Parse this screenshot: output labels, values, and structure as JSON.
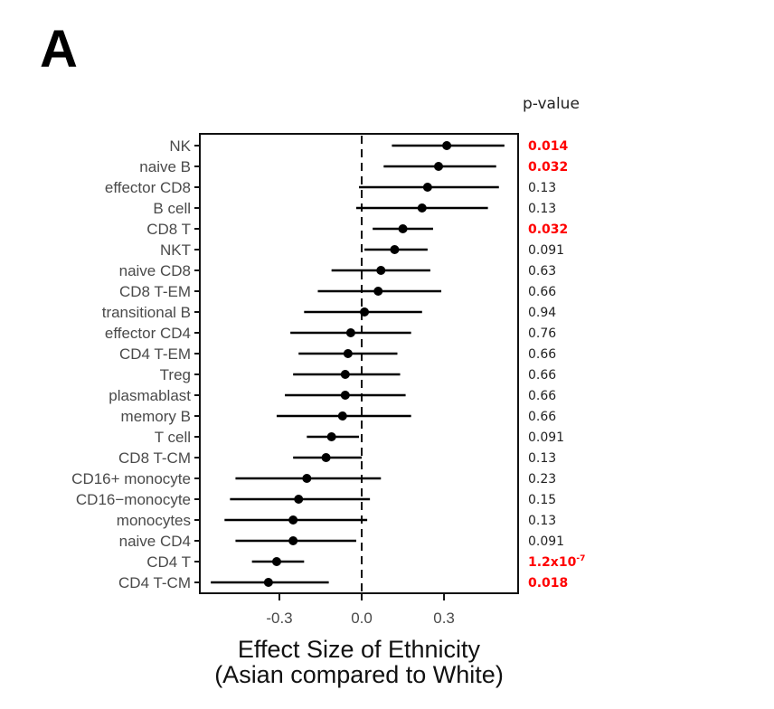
{
  "panel_label": "A",
  "chart_data": {
    "type": "forest",
    "title": "",
    "xlabel_line1": "Effect Size of Ethnicity",
    "xlabel_line2": "(Asian compared to White)",
    "ylabel": "",
    "xlim": [
      -0.59,
      0.57
    ],
    "xticks": [
      -0.3,
      0.0,
      0.3
    ],
    "xtick_labels": [
      "-0.3",
      "0.0",
      "0.3"
    ],
    "reference_line": 0.0,
    "grid": false,
    "pvalue_header": "p-value",
    "significant_color": "#ff0000",
    "normal_color": "#222222",
    "rows": [
      {
        "label": "NK",
        "estimate": 0.31,
        "ci_low": 0.11,
        "ci_high": 0.52,
        "p_value": "0.014",
        "significant": true
      },
      {
        "label": "naive B",
        "estimate": 0.28,
        "ci_low": 0.08,
        "ci_high": 0.49,
        "p_value": "0.032",
        "significant": true
      },
      {
        "label": "effector CD8",
        "estimate": 0.24,
        "ci_low": -0.01,
        "ci_high": 0.5,
        "p_value": "0.13",
        "significant": false
      },
      {
        "label": "B cell",
        "estimate": 0.22,
        "ci_low": -0.02,
        "ci_high": 0.46,
        "p_value": "0.13",
        "significant": false
      },
      {
        "label": "CD8 T",
        "estimate": 0.15,
        "ci_low": 0.04,
        "ci_high": 0.26,
        "p_value": "0.032",
        "significant": true
      },
      {
        "label": "NKT",
        "estimate": 0.12,
        "ci_low": 0.01,
        "ci_high": 0.24,
        "p_value": "0.091",
        "significant": false
      },
      {
        "label": "naive CD8",
        "estimate": 0.07,
        "ci_low": -0.11,
        "ci_high": 0.25,
        "p_value": "0.63",
        "significant": false
      },
      {
        "label": "CD8 T-EM",
        "estimate": 0.06,
        "ci_low": -0.16,
        "ci_high": 0.29,
        "p_value": "0.66",
        "significant": false
      },
      {
        "label": "transitional B",
        "estimate": 0.01,
        "ci_low": -0.21,
        "ci_high": 0.22,
        "p_value": "0.94",
        "significant": false
      },
      {
        "label": "effector CD4",
        "estimate": -0.04,
        "ci_low": -0.26,
        "ci_high": 0.18,
        "p_value": "0.76",
        "significant": false
      },
      {
        "label": "CD4 T-EM",
        "estimate": -0.05,
        "ci_low": -0.23,
        "ci_high": 0.13,
        "p_value": "0.66",
        "significant": false
      },
      {
        "label": "Treg",
        "estimate": -0.06,
        "ci_low": -0.25,
        "ci_high": 0.14,
        "p_value": "0.66",
        "significant": false
      },
      {
        "label": "plasmablast",
        "estimate": -0.06,
        "ci_low": -0.28,
        "ci_high": 0.16,
        "p_value": "0.66",
        "significant": false
      },
      {
        "label": "memory B",
        "estimate": -0.07,
        "ci_low": -0.31,
        "ci_high": 0.18,
        "p_value": "0.66",
        "significant": false
      },
      {
        "label": "T cell",
        "estimate": -0.11,
        "ci_low": -0.2,
        "ci_high": -0.01,
        "p_value": "0.091",
        "significant": false
      },
      {
        "label": "CD8 T-CM",
        "estimate": -0.13,
        "ci_low": -0.25,
        "ci_high": 0.0,
        "p_value": "0.13",
        "significant": false
      },
      {
        "label": "CD16+ monocyte",
        "estimate": -0.2,
        "ci_low": -0.46,
        "ci_high": 0.07,
        "p_value": "0.23",
        "significant": false
      },
      {
        "label": "CD16−monocyte",
        "estimate": -0.23,
        "ci_low": -0.48,
        "ci_high": 0.03,
        "p_value": "0.15",
        "significant": false
      },
      {
        "label": "monocytes",
        "estimate": -0.25,
        "ci_low": -0.5,
        "ci_high": 0.02,
        "p_value": "0.13",
        "significant": false
      },
      {
        "label": "naive CD4",
        "estimate": -0.25,
        "ci_low": -0.46,
        "ci_high": -0.02,
        "p_value": "0.091",
        "significant": false
      },
      {
        "label": "CD4 T",
        "estimate": -0.31,
        "ci_low": -0.4,
        "ci_high": -0.21,
        "p_value": "1.2x10",
        "p_value_exponent": "-7",
        "significant": true
      },
      {
        "label": "CD4 T-CM",
        "estimate": -0.34,
        "ci_low": -0.55,
        "ci_high": -0.12,
        "p_value": "0.018",
        "significant": true
      }
    ]
  }
}
